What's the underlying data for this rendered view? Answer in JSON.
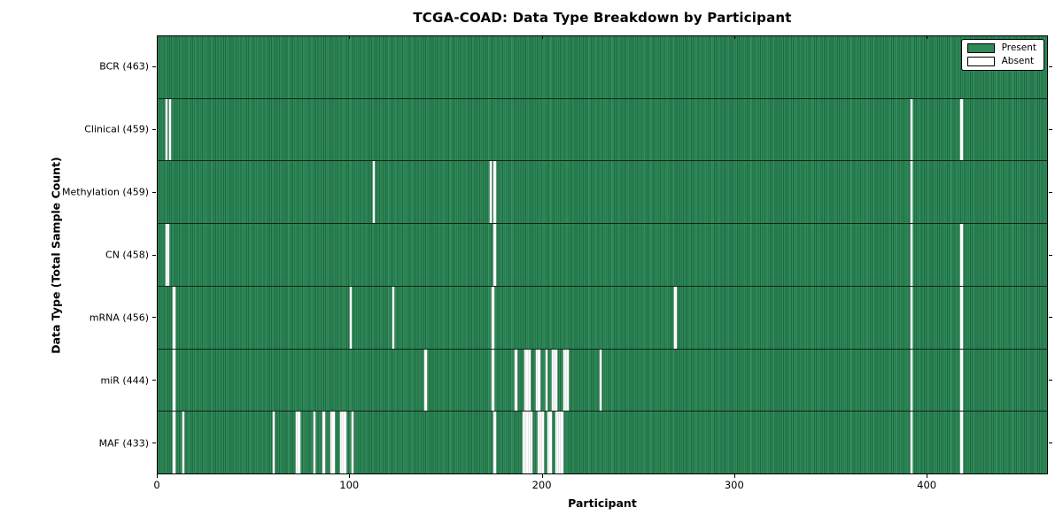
{
  "title": "TCGA-COAD: Data Type Breakdown by Participant",
  "xlabel": "Participant",
  "ylabel": "Data Type (Total Sample Count)",
  "legend": {
    "present_label": "Present",
    "absent_label": "Absent"
  },
  "colors": {
    "present": "#2e8b57",
    "present_edge": "#1d6a43",
    "absent": "#ffffff",
    "spine": "#000000",
    "background": "#ffffff"
  },
  "chart_data": {
    "type": "heatmap",
    "title": "TCGA-COAD: Data Type Breakdown by Participant",
    "xlabel": "Participant",
    "ylabel": "Data Type (Total Sample Count)",
    "x_ticks": [
      0,
      100,
      200,
      300,
      400
    ],
    "x_range": [
      0,
      463
    ],
    "total_participants": 463,
    "grid": false,
    "legend_position": "upper right",
    "legend": [
      {
        "label": "Present",
        "color": "#2e8b57"
      },
      {
        "label": "Absent",
        "color": "#ffffff"
      }
    ],
    "rows": [
      {
        "name": "bcr",
        "label": "BCR (463)",
        "data_type": "BCR",
        "count": 463,
        "absent_participants": []
      },
      {
        "name": "clinical",
        "label": "Clinical (459)",
        "data_type": "Clinical",
        "count": 459,
        "absent_participants": [
          4,
          6,
          392,
          418
        ]
      },
      {
        "name": "methylation",
        "label": "Methylation (459)",
        "data_type": "Methylation",
        "count": 459,
        "absent_participants": [
          112,
          173,
          175,
          392
        ]
      },
      {
        "name": "cn",
        "label": "CN (458)",
        "data_type": "CN",
        "count": 458,
        "absent_participants": [
          4,
          5,
          175,
          392,
          418
        ]
      },
      {
        "name": "mrna",
        "label": "mRNA (456)",
        "data_type": "mRNA",
        "count": 456,
        "absent_participants": [
          8,
          100,
          122,
          174,
          269,
          392,
          418
        ]
      },
      {
        "name": "mir",
        "label": "miR (444)",
        "data_type": "miR",
        "count": 444,
        "absent_participants": [
          8,
          139,
          174,
          186,
          191,
          192,
          193,
          197,
          198,
          202,
          205,
          206,
          207,
          211,
          212,
          213,
          230,
          392,
          418
        ]
      },
      {
        "name": "maf",
        "label": "MAF (433)",
        "data_type": "MAF",
        "count": 433,
        "absent_participants": [
          8,
          13,
          60,
          72,
          73,
          81,
          86,
          90,
          91,
          95,
          96,
          97,
          101,
          175,
          190,
          191,
          192,
          193,
          194,
          198,
          199,
          200,
          203,
          204,
          207,
          208,
          209,
          210,
          392,
          418
        ]
      }
    ]
  }
}
